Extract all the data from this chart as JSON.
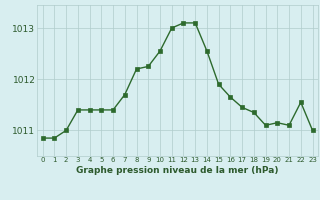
{
  "hours": [
    0,
    1,
    2,
    3,
    4,
    5,
    6,
    7,
    8,
    9,
    10,
    11,
    12,
    13,
    14,
    15,
    16,
    17,
    18,
    19,
    20,
    21,
    22,
    23
  ],
  "pressure": [
    1010.85,
    1010.85,
    1011.0,
    1011.4,
    1011.4,
    1011.4,
    1011.4,
    1011.7,
    1012.2,
    1012.25,
    1012.55,
    1013.0,
    1013.1,
    1013.1,
    1012.55,
    1011.9,
    1011.65,
    1011.45,
    1011.35,
    1011.1,
    1011.15,
    1011.1,
    1011.55,
    1011.0
  ],
  "line_color": "#2d6a2d",
  "marker_color": "#2d6a2d",
  "bg_color": "#d8eef0",
  "grid_color": "#b0cccc",
  "tick_color": "#2d5a2d",
  "yticks": [
    1011,
    1012,
    1013
  ],
  "ylim": [
    1010.5,
    1013.45
  ],
  "xlim": [
    -0.5,
    23.5
  ],
  "xlabel": "Graphe pression niveau de la mer (hPa)",
  "xlabel_color": "#2d5a2d"
}
